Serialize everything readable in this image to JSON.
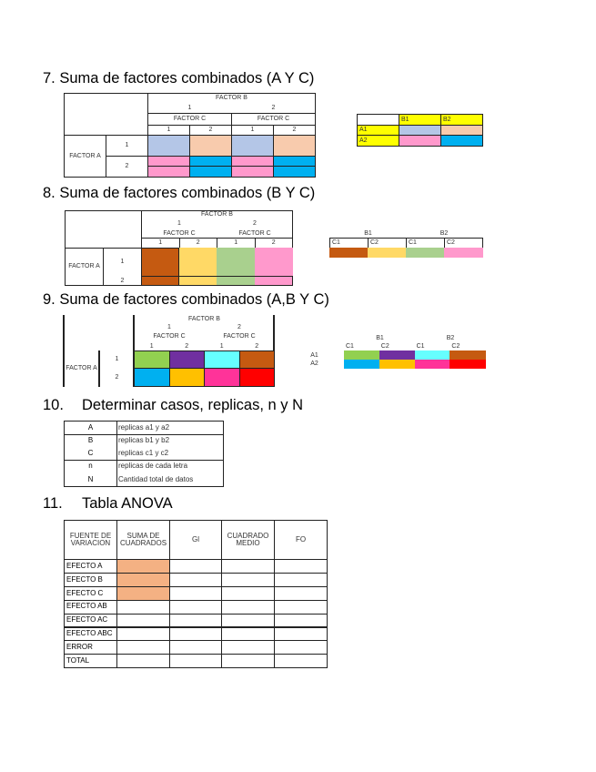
{
  "colors": {
    "blue_gray": "#b4c6e7",
    "peach": "#f8cbad",
    "pink": "#ff99cc",
    "cyan": "#00b0f0",
    "yellow": "#ffff00",
    "rust": "#c55a11",
    "gold": "#ffd966",
    "sage": "#a9d08e",
    "lime": "#92d050",
    "purple": "#7030a0",
    "aqua": "#66ffff",
    "amber": "#ffc000",
    "magenta": "#ff3399",
    "red": "#ff0000",
    "orange": "#f4b183"
  },
  "s7": {
    "title": "7. Suma de factores combinados (A Y C)",
    "factor_b": "FACTOR B",
    "b1": "1",
    "b2": "2",
    "factor_c": "FACTOR C",
    "c1": "1",
    "c2": "2",
    "factor_a": "FACTOR A",
    "a1": "1",
    "a2": "2",
    "side": {
      "b1": "B1",
      "b2": "B2",
      "a1": "A1",
      "a2": "A2"
    }
  },
  "s8": {
    "title": "8. Suma de factores combinados (B Y C)",
    "factor_b": "FACTOR B",
    "b1": "1",
    "b2": "2",
    "factor_c": "FACTOR C",
    "c1": "1",
    "c2": "2",
    "factor_a": "FACTOR A",
    "a1": "1",
    "a2": "2",
    "side": {
      "b1": "B1",
      "b2": "B2",
      "c1": "C1",
      "c2": "C2"
    }
  },
  "s9": {
    "title": "9. Suma de factores combinados (A,B Y C)",
    "factor_b": "FACTOR B",
    "b1": "1",
    "b2": "2",
    "factor_c": "FACTOR C",
    "c1": "1",
    "c2": "2",
    "factor_a": "FACTOR A",
    "a1": "1",
    "a2": "2",
    "side": {
      "b1": "B1",
      "b2": "B2",
      "c1": "C1",
      "c2": "C2",
      "a1": "A1",
      "a2": "A2"
    }
  },
  "s10": {
    "number": "10.",
    "title": "Determinar casos, replicas, n y N",
    "rows": [
      {
        "k": "A",
        "v": "replicas a1 y a2"
      },
      {
        "k": "B",
        "v": "replicas b1 y b2"
      },
      {
        "k": "C",
        "v": "replicas c1 y c2"
      },
      {
        "k": "n",
        "v": "replicas de cada letra"
      },
      {
        "k": "N",
        "v": "Cantidad total de datos"
      }
    ]
  },
  "s11": {
    "number": "11.",
    "title": "Tabla ANOVA",
    "headers": [
      "FUENTE DE VARIACION",
      "SUMA DE CUADRADOS",
      "Gl",
      "CUADRADO MEDIO",
      "FO"
    ],
    "rows": [
      "EFECTO A",
      "EFECTO B",
      "EFECTO C",
      "EFECTO AB",
      "EFECTO AC",
      "EFECTO ABC",
      "ERROR",
      "TOTAL"
    ]
  }
}
